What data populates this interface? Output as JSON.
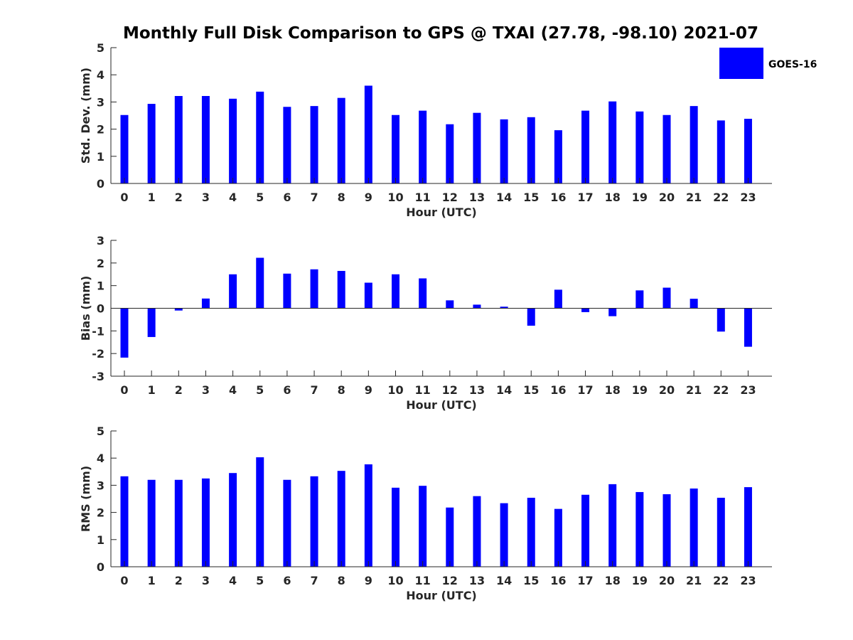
{
  "figure": {
    "title": "Monthly Full Disk Comparison to GPS @ TXAI (27.78, -98.10) 2021-07"
  },
  "legend": {
    "label": "GOES-16",
    "color": "#0000ff"
  },
  "chart_data": [
    {
      "type": "bar",
      "ylabel": "Std. Dev. (mm)",
      "xlabel": "Hour (UTC)",
      "ylim": [
        0,
        5
      ],
      "yticks": [
        0,
        1,
        2,
        3,
        4,
        5
      ],
      "categories": [
        0,
        1,
        2,
        3,
        4,
        5,
        6,
        7,
        8,
        9,
        10,
        11,
        12,
        13,
        14,
        15,
        16,
        17,
        18,
        19,
        20,
        21,
        22,
        23
      ],
      "series": [
        {
          "name": "GOES-16",
          "color": "#0000ff",
          "values": [
            2.52,
            2.93,
            3.22,
            3.22,
            3.12,
            3.38,
            2.82,
            2.85,
            3.15,
            3.6,
            2.52,
            2.68,
            2.18,
            2.6,
            2.36,
            2.44,
            1.96,
            2.68,
            3.02,
            2.65,
            2.52,
            2.85,
            2.32,
            2.38
          ]
        }
      ],
      "grid": false,
      "legend_position": "outside-top-right"
    },
    {
      "type": "bar",
      "ylabel": "Bias (mm)",
      "xlabel": "Hour (UTC)",
      "ylim": [
        -3,
        3
      ],
      "yticks": [
        -3,
        -2,
        -1,
        0,
        1,
        2,
        3
      ],
      "categories": [
        0,
        1,
        2,
        3,
        4,
        5,
        6,
        7,
        8,
        9,
        10,
        11,
        12,
        13,
        14,
        15,
        16,
        17,
        18,
        19,
        20,
        21,
        22,
        23
      ],
      "series": [
        {
          "name": "GOES-16",
          "color": "#0000ff",
          "values": [
            -2.18,
            -1.27,
            -0.1,
            0.43,
            1.5,
            2.23,
            1.53,
            1.72,
            1.65,
            1.13,
            1.5,
            1.32,
            0.35,
            0.16,
            0.07,
            -0.77,
            0.82,
            -0.17,
            -0.35,
            0.79,
            0.91,
            0.42,
            -1.03,
            -1.7
          ]
        }
      ],
      "grid": false
    },
    {
      "type": "bar",
      "ylabel": "RMS (mm)",
      "xlabel": "Hour (UTC)",
      "ylim": [
        0,
        5
      ],
      "yticks": [
        0,
        1,
        2,
        3,
        4,
        5
      ],
      "categories": [
        0,
        1,
        2,
        3,
        4,
        5,
        6,
        7,
        8,
        9,
        10,
        11,
        12,
        13,
        14,
        15,
        16,
        17,
        18,
        19,
        20,
        21,
        22,
        23
      ],
      "series": [
        {
          "name": "GOES-16",
          "color": "#0000ff",
          "values": [
            3.33,
            3.2,
            3.2,
            3.25,
            3.45,
            4.03,
            3.2,
            3.33,
            3.53,
            3.77,
            2.91,
            2.98,
            2.18,
            2.6,
            2.34,
            2.54,
            2.13,
            2.65,
            3.04,
            2.75,
            2.67,
            2.88,
            2.54,
            2.93
          ]
        }
      ],
      "grid": false
    }
  ]
}
